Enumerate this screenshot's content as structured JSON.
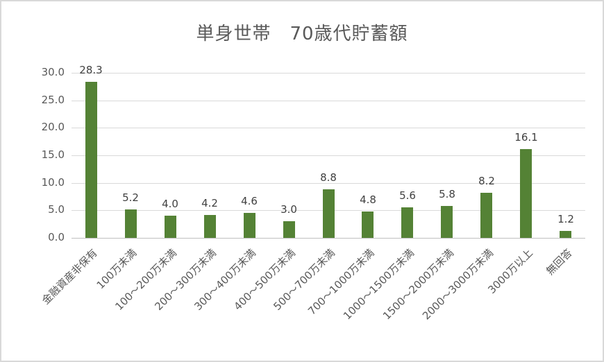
{
  "chart_data": {
    "type": "bar",
    "title": "単身世帯　70歳代貯蓄額",
    "xlabel": "",
    "ylabel": "",
    "ylim": [
      0,
      30
    ],
    "yticks": [
      "0.0",
      "5.0",
      "10.0",
      "15.0",
      "20.0",
      "25.0",
      "30.0"
    ],
    "grid": true,
    "legend": null,
    "bar_color": "#548235",
    "categories": [
      "金融資産非保有",
      "100万未満",
      "100～200万未満",
      "200～300万未満",
      "300～400万未満",
      "400～500万未満",
      "500～700万未満",
      "700～1000万未満",
      "1000～1500万未満",
      "1500～2000万未満",
      "2000～3000万未満",
      "3000万以上",
      "無回答"
    ],
    "values": [
      28.3,
      5.2,
      4.0,
      4.2,
      4.6,
      3.0,
      8.8,
      4.8,
      5.6,
      5.8,
      8.2,
      16.1,
      1.2
    ],
    "value_labels": [
      "28.3",
      "5.2",
      "4.0",
      "4.2",
      "4.6",
      "3.0",
      "8.8",
      "4.8",
      "5.6",
      "5.8",
      "8.2",
      "16.1",
      "1.2"
    ]
  }
}
